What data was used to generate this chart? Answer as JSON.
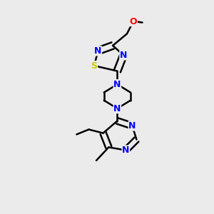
{
  "bg_color": "#ebebeb",
  "bond_color": "#000000",
  "bond_width": 1.8,
  "atom_colors": {
    "N": "#0000ff",
    "S": "#cccc00",
    "O": "#ff0000",
    "C": "#000000"
  },
  "font_size": 9,
  "figsize": [
    3.0,
    3.0
  ],
  "dpi": 100
}
